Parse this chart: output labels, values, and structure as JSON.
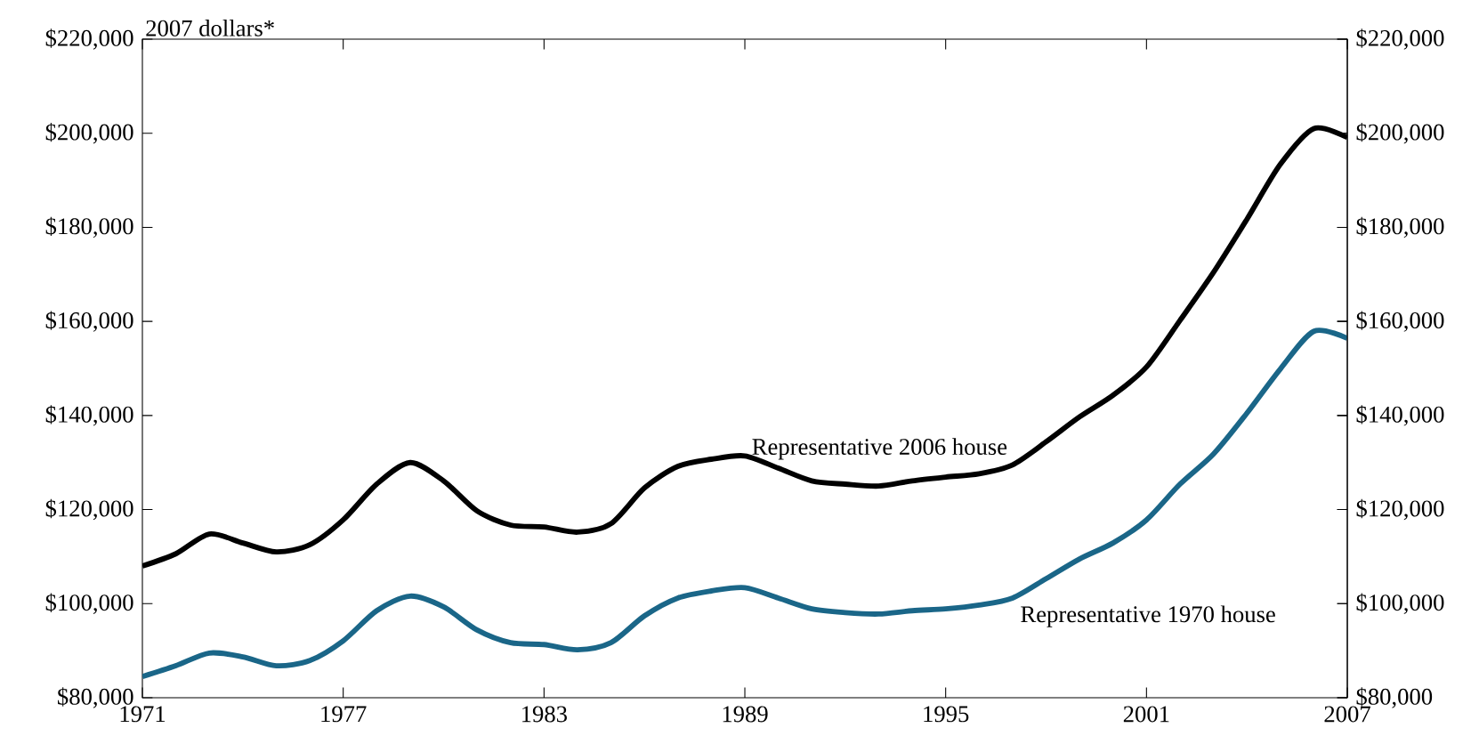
{
  "chart_data": {
    "type": "line",
    "ylabel": "2007 dollars*",
    "x": [
      1971,
      1972,
      1973,
      1974,
      1975,
      1976,
      1977,
      1978,
      1979,
      1980,
      1981,
      1982,
      1983,
      1984,
      1985,
      1986,
      1987,
      1988,
      1989,
      1990,
      1991,
      1992,
      1993,
      1994,
      1995,
      1996,
      1997,
      1998,
      1999,
      2000,
      2001,
      2002,
      2003,
      2004,
      2005,
      2006,
      2007
    ],
    "series": [
      {
        "name": "Representative 2006 house",
        "color": "#000000",
        "values": [
          108000,
          110600,
          114800,
          112900,
          111000,
          112500,
          117800,
          125400,
          130000,
          126100,
          119700,
          116700,
          116300,
          115200,
          117000,
          124600,
          129200,
          130700,
          131400,
          128800,
          126100,
          125400,
          125000,
          126100,
          126900,
          127600,
          129500,
          134400,
          139700,
          144300,
          150300,
          160200,
          170400,
          181700,
          193400,
          201000,
          199100
        ]
      },
      {
        "name": "Representative 1970 house",
        "color": "#1a6688",
        "values": [
          84500,
          86800,
          89500,
          88700,
          86800,
          87900,
          92100,
          98500,
          101600,
          99300,
          94400,
          91700,
          91300,
          90200,
          91700,
          97400,
          101200,
          102700,
          103400,
          101200,
          98900,
          98100,
          97800,
          98500,
          98900,
          99700,
          101200,
          105300,
          109500,
          112900,
          117800,
          125400,
          131800,
          140500,
          149900,
          157900,
          156400
        ]
      }
    ],
    "xlim": [
      1971,
      2007
    ],
    "xticks": [
      1971,
      1977,
      1983,
      1989,
      1995,
      2001,
      2007
    ],
    "ylim": [
      80000,
      220000
    ],
    "yticks": [
      {
        "value": 80000,
        "label": "$80,000"
      },
      {
        "value": 100000,
        "label": "$100,000"
      },
      {
        "value": 120000,
        "label": "$120,000"
      },
      {
        "value": 140000,
        "label": "$140,000"
      },
      {
        "value": 160000,
        "label": "$160,000"
      },
      {
        "value": 180000,
        "label": "$180,000"
      },
      {
        "value": 200000,
        "label": "$200,000"
      },
      {
        "value": 220000,
        "label": "$220,000"
      }
    ],
    "y2lim": [
      80000,
      220000
    ],
    "y2ticks": [
      {
        "value": 80000,
        "label": "$80,000"
      },
      {
        "value": 100000,
        "label": "$100,000"
      },
      {
        "value": 120000,
        "label": "$120,000"
      },
      {
        "value": 140000,
        "label": "$140,000"
      },
      {
        "value": 160000,
        "label": "$160,000"
      },
      {
        "value": 180000,
        "label": "$180,000"
      },
      {
        "value": 200000,
        "label": "$200,000"
      },
      {
        "value": 220000,
        "label": "$220,000"
      }
    ],
    "legend": false,
    "grid": false,
    "marker": "none",
    "line_style": "solid"
  }
}
